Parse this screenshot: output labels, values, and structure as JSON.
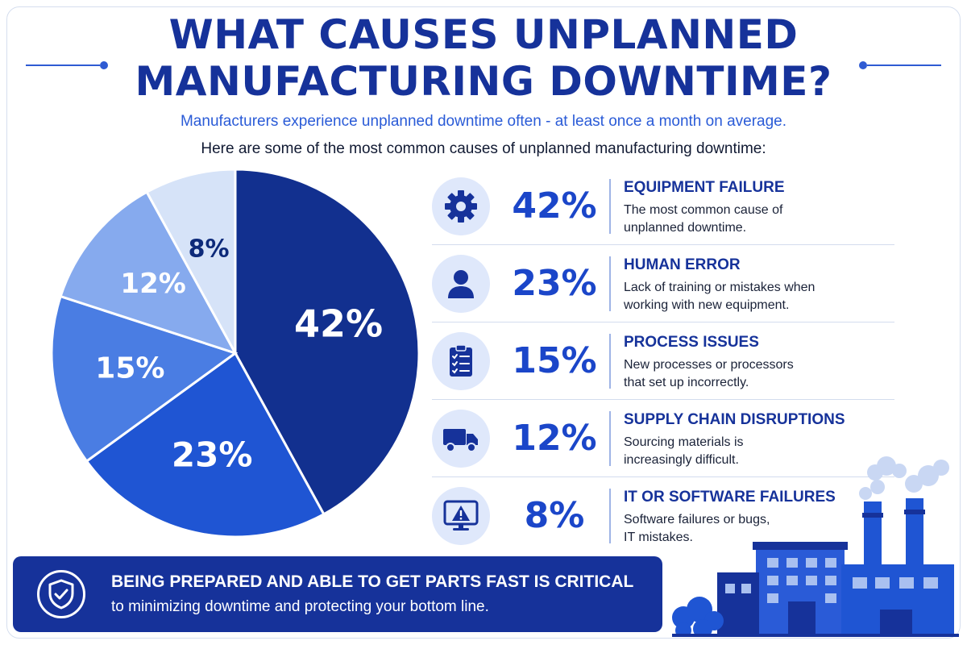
{
  "header": {
    "title_line1": "WHAT CAUSES UNPLANNED",
    "title_line2": "MANUFACTURING DOWNTIME?",
    "subtitle1": "Manufacturers experience unplanned downtime often - at least once a month on average.",
    "subtitle2": "Here are some of the most common causes of unplanned manufacturing downtime:"
  },
  "colors": {
    "title": "#16329a",
    "accent": "#2a5bd7",
    "slices": [
      "#12308f",
      "#1f55d3",
      "#4a7de3",
      "#86aaee",
      "#d6e3f8"
    ]
  },
  "chart_data": {
    "type": "pie",
    "categories": [
      "Equipment Failure",
      "Human Error",
      "Process Issues",
      "Supply Chain Disruptions",
      "IT or Software Failures"
    ],
    "values": [
      42,
      23,
      15,
      12,
      8
    ],
    "labels": [
      "42%",
      "23%",
      "15%",
      "12%",
      "8%"
    ]
  },
  "causes": [
    {
      "icon": "gear-icon",
      "percent": "42%",
      "title": "EQUIPMENT FAILURE",
      "desc1": "The most common cause of",
      "desc2": "unplanned downtime."
    },
    {
      "icon": "person-icon",
      "percent": "23%",
      "title": "HUMAN ERROR",
      "desc1": "Lack of training or mistakes when",
      "desc2": "working with new equipment."
    },
    {
      "icon": "clipboard-checklist-icon",
      "percent": "15%",
      "title": "PROCESS ISSUES",
      "desc1": "New processes or processors",
      "desc2": "that set up incorrectly."
    },
    {
      "icon": "delivery-truck-icon",
      "percent": "12%",
      "title": "SUPPLY CHAIN DISRUPTIONS",
      "desc1": "Sourcing materials is",
      "desc2": "increasingly difficult."
    },
    {
      "icon": "monitor-warning-icon",
      "percent": "8%",
      "title": "IT OR SOFTWARE FAILURES",
      "desc1": "Software failures or bugs,",
      "desc2": "IT mistakes."
    }
  ],
  "banner": {
    "icon": "shield-check-icon",
    "title": "BEING PREPARED AND ABLE TO GET PARTS FAST IS CRITICAL",
    "subtitle": "to minimizing downtime and protecting your bottom line."
  }
}
